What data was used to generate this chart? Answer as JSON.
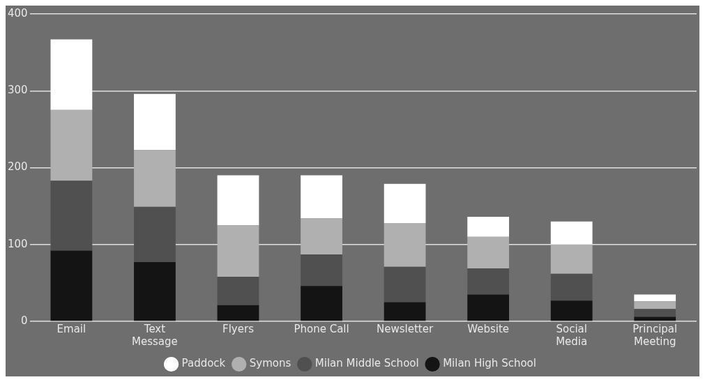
{
  "chart_data": {
    "type": "bar",
    "stacked": true,
    "categories": [
      "Email",
      "Text Message",
      "Flyers",
      "Phone Call",
      "Newsletter",
      "Website",
      "Social Media",
      "Principal Meeting"
    ],
    "series": [
      {
        "name": "Milan High School",
        "color": "#141414",
        "values": [
          92,
          77,
          21,
          46,
          25,
          35,
          27,
          6
        ]
      },
      {
        "name": "Milan Middle School",
        "color": "#505050",
        "values": [
          91,
          72,
          37,
          41,
          46,
          34,
          35,
          10
        ]
      },
      {
        "name": "Symons",
        "color": "#b0b0b0",
        "values": [
          92,
          74,
          67,
          47,
          57,
          41,
          38,
          10
        ]
      },
      {
        "name": "Paddock",
        "color": "#ffffff",
        "values": [
          92,
          73,
          65,
          56,
          51,
          26,
          30,
          9
        ]
      }
    ],
    "ylim": [
      0,
      400
    ],
    "yticks": [
      0,
      100,
      200,
      300,
      400
    ],
    "grid": "y",
    "legend": "bottom"
  }
}
